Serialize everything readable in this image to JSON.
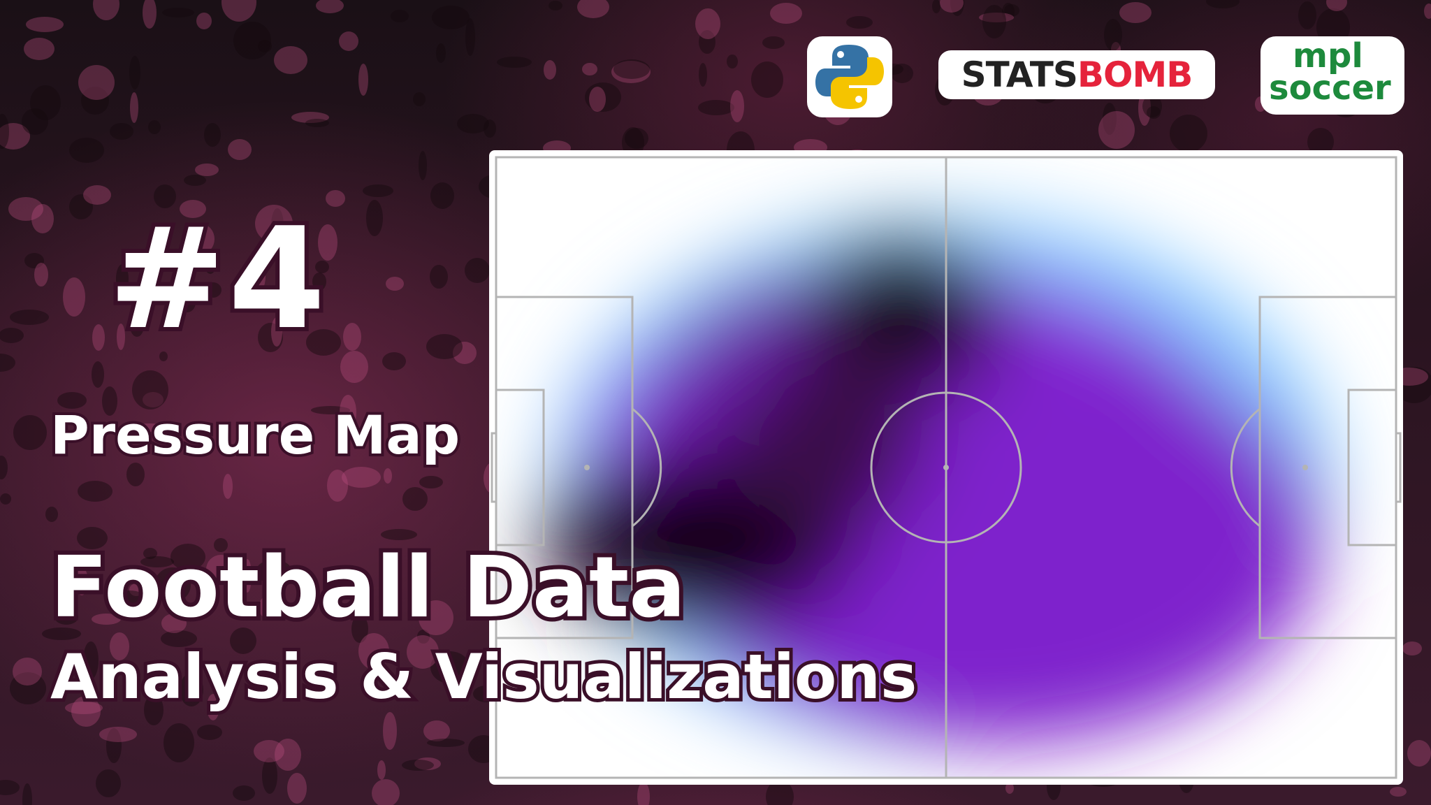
{
  "header": {
    "logos": [
      {
        "name": "python-logo"
      },
      {
        "name": "statsbomb-logo",
        "text_a": "STATS",
        "text_b": "B",
        "text_c": "O",
        "text_d": "MB"
      },
      {
        "name": "mplsoccer-logo",
        "line1": "mpl",
        "line2": "soccer"
      }
    ]
  },
  "title": {
    "number": "#4",
    "subtitle": "Pressure Map",
    "headline_line1": "Football Data",
    "headline_line2": "Analysis & Visualizations"
  },
  "colors": {
    "background": "#1e1118",
    "crowd_tint": "#8c2f5c",
    "text_outline": "#3a0f28",
    "pitch_lines": "#b4b4b4",
    "heat_low": "#7fc8ff",
    "heat_mid": "#8a2be2",
    "heat_high": "#000000"
  }
}
